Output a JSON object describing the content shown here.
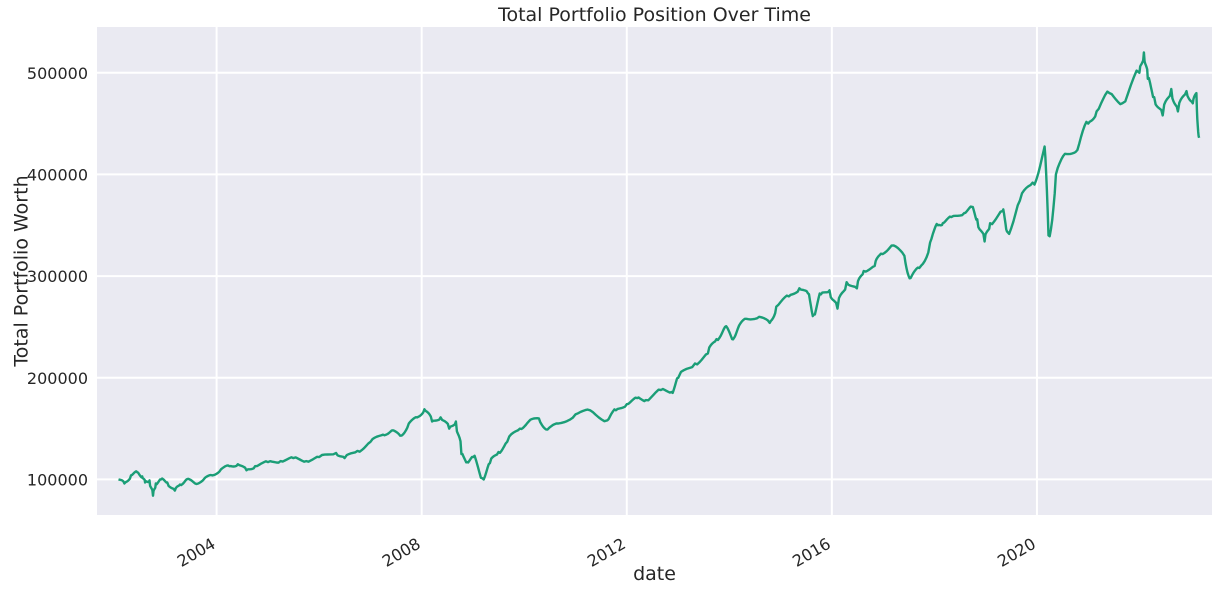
{
  "chart_data": {
    "type": "line",
    "title": "Total Portfolio Position Over Time",
    "xlabel": "date",
    "ylabel": "Total Portfolio Worth",
    "x_ticks": [
      "2004",
      "2008",
      "2012",
      "2016",
      "2020"
    ],
    "y_ticks": [
      "100000",
      "200000",
      "300000",
      "400000",
      "500000"
    ],
    "xlim": [
      "2001-09-01",
      "2023-06-01"
    ],
    "ylim": [
      65000,
      545000
    ],
    "grid": true,
    "background_color": "#eaeaf2",
    "grid_color": "#ffffff",
    "series": [
      {
        "color": "#1b9e77",
        "points": [
          [
            "2002-02-01",
            100000
          ],
          [
            "2002-03-15",
            96000
          ],
          [
            "2002-05-01",
            104000
          ],
          [
            "2002-06-15",
            107000
          ],
          [
            "2002-07-20",
            103000
          ],
          [
            "2002-08-10",
            97000
          ],
          [
            "2002-09-10",
            99000
          ],
          [
            "2002-10-05",
            84000
          ],
          [
            "2002-10-25",
            96000
          ],
          [
            "2002-12-01",
            100000
          ],
          [
            "2003-01-15",
            97000
          ],
          [
            "2003-03-10",
            89000
          ],
          [
            "2003-04-15",
            95000
          ],
          [
            "2003-06-01",
            100000
          ],
          [
            "2003-08-01",
            96000
          ],
          [
            "2003-10-01",
            100000
          ],
          [
            "2003-12-01",
            104000
          ],
          [
            "2004-02-01",
            110000
          ],
          [
            "2004-04-01",
            113000
          ],
          [
            "2004-06-01",
            115000
          ],
          [
            "2004-08-01",
            109000
          ],
          [
            "2004-10-01",
            113000
          ],
          [
            "2005-01-01",
            117000
          ],
          [
            "2005-04-01",
            118000
          ],
          [
            "2005-07-01",
            121000
          ],
          [
            "2005-10-01",
            118000
          ],
          [
            "2006-01-01",
            122000
          ],
          [
            "2006-05-01",
            126000
          ],
          [
            "2006-07-01",
            121000
          ],
          [
            "2006-10-01",
            128000
          ],
          [
            "2007-01-01",
            137000
          ],
          [
            "2007-04-01",
            144000
          ],
          [
            "2007-06-01",
            148000
          ],
          [
            "2007-08-01",
            143000
          ],
          [
            "2007-10-01",
            155000
          ],
          [
            "2007-12-01",
            161000
          ],
          [
            "2008-01-20",
            169000
          ],
          [
            "2008-03-15",
            157000
          ],
          [
            "2008-05-15",
            161000
          ],
          [
            "2008-07-15",
            150000
          ],
          [
            "2008-09-01",
            157000
          ],
          [
            "2008-10-10",
            125000
          ],
          [
            "2008-11-20",
            117000
          ],
          [
            "2009-01-01",
            122000
          ],
          [
            "2009-03-09",
            101000
          ],
          [
            "2009-05-01",
            116000
          ],
          [
            "2009-07-01",
            127000
          ],
          [
            "2009-09-01",
            137000
          ],
          [
            "2009-12-01",
            150000
          ],
          [
            "2010-02-01",
            157000
          ],
          [
            "2010-04-15",
            160000
          ],
          [
            "2010-06-15",
            149000
          ],
          [
            "2010-09-01",
            155000
          ],
          [
            "2011-01-01",
            164000
          ],
          [
            "2011-04-15",
            168000
          ],
          [
            "2011-08-15",
            158000
          ],
          [
            "2011-10-15",
            168000
          ],
          [
            "2012-01-01",
            174000
          ],
          [
            "2012-03-15",
            180000
          ],
          [
            "2012-05-15",
            178000
          ],
          [
            "2012-09-01",
            188000
          ],
          [
            "2012-11-15",
            186000
          ],
          [
            "2013-01-01",
            200000
          ],
          [
            "2013-05-01",
            214000
          ],
          [
            "2013-08-01",
            224000
          ],
          [
            "2013-10-01",
            238000
          ],
          [
            "2013-12-01",
            250000
          ],
          [
            "2014-01-20",
            238000
          ],
          [
            "2014-03-01",
            248000
          ],
          [
            "2014-05-01",
            258000
          ],
          [
            "2014-08-01",
            260000
          ],
          [
            "2014-10-15",
            254000
          ],
          [
            "2014-12-01",
            270000
          ],
          [
            "2015-03-01",
            280000
          ],
          [
            "2015-05-15",
            288000
          ],
          [
            "2015-07-15",
            283000
          ],
          [
            "2015-08-25",
            262000
          ],
          [
            "2015-10-15",
            282000
          ],
          [
            "2015-12-15",
            286000
          ],
          [
            "2016-02-10",
            268000
          ],
          [
            "2016-04-15",
            294000
          ],
          [
            "2016-06-27",
            288000
          ],
          [
            "2016-08-15",
            305000
          ],
          [
            "2016-11-01",
            310000
          ],
          [
            "2016-12-15",
            322000
          ],
          [
            "2017-03-01",
            330000
          ],
          [
            "2017-06-01",
            320000
          ],
          [
            "2017-07-15",
            298000
          ],
          [
            "2017-09-15",
            308000
          ],
          [
            "2017-12-01",
            333000
          ],
          [
            "2018-01-26",
            350000
          ],
          [
            "2018-03-01",
            352000
          ],
          [
            "2018-05-01",
            358000
          ],
          [
            "2018-08-01",
            362000
          ],
          [
            "2018-09-25",
            368000
          ],
          [
            "2018-11-01",
            356000
          ],
          [
            "2018-12-24",
            334000
          ],
          [
            "2019-02-01",
            352000
          ],
          [
            "2019-05-01",
            364000
          ],
          [
            "2019-06-01",
            344000
          ],
          [
            "2019-09-01",
            374000
          ],
          [
            "2019-12-01",
            392000
          ],
          [
            "2020-02-19",
            424000
          ],
          [
            "2020-03-23",
            340000
          ],
          [
            "2020-05-15",
            400000
          ],
          [
            "2020-08-01",
            420000
          ],
          [
            "2020-10-15",
            424000
          ],
          [
            "2020-12-31",
            450000
          ],
          [
            "2021-03-01",
            462000
          ],
          [
            "2021-06-01",
            480000
          ],
          [
            "2021-09-01",
            470000
          ],
          [
            "2021-12-31",
            500000
          ],
          [
            "2022-02-01",
            520000
          ],
          [
            "2022-03-01",
            494000
          ],
          [
            "2022-04-15",
            476000
          ],
          [
            "2022-06-15",
            458000
          ],
          [
            "2022-08-15",
            484000
          ],
          [
            "2022-10-01",
            462000
          ],
          [
            "2022-12-01",
            482000
          ],
          [
            "2023-01-15",
            470000
          ],
          [
            "2023-02-10",
            480000
          ],
          [
            "2023-03-01",
            436000
          ]
        ]
      }
    ]
  }
}
